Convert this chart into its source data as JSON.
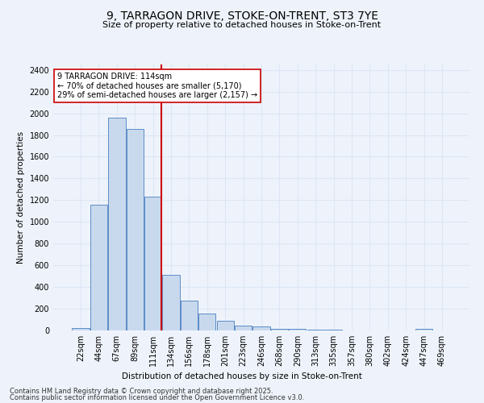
{
  "title1": "9, TARRAGON DRIVE, STOKE-ON-TRENT, ST3 7YE",
  "title2": "Size of property relative to detached houses in Stoke-on-Trent",
  "xlabel": "Distribution of detached houses by size in Stoke-on-Trent",
  "ylabel": "Number of detached properties",
  "bins": [
    "22sqm",
    "44sqm",
    "67sqm",
    "89sqm",
    "111sqm",
    "134sqm",
    "156sqm",
    "178sqm",
    "201sqm",
    "223sqm",
    "246sqm",
    "268sqm",
    "290sqm",
    "313sqm",
    "335sqm",
    "357sqm",
    "380sqm",
    "402sqm",
    "424sqm",
    "447sqm",
    "469sqm"
  ],
  "values": [
    25,
    1155,
    1960,
    1855,
    1230,
    515,
    275,
    155,
    90,
    45,
    40,
    18,
    12,
    8,
    5,
    3,
    2,
    2,
    1,
    15,
    0
  ],
  "bar_color": "#c9d9ed",
  "bar_edge_color": "#5b8dc8",
  "grid_color": "#dce6f5",
  "background_color": "#eef3fb",
  "annotation_text": "9 TARRAGON DRIVE: 114sqm\n← 70% of detached houses are smaller (5,170)\n29% of semi-detached houses are larger (2,157) →",
  "red_line_bin_index": 4,
  "red_line_color": "#cc0000",
  "annotation_box_color": "#ffffff",
  "annotation_box_edge": "#cc0000",
  "ylim": [
    0,
    2450
  ],
  "yticks": [
    0,
    200,
    400,
    600,
    800,
    1000,
    1200,
    1400,
    1600,
    1800,
    2000,
    2200,
    2400
  ],
  "footnote1": "Contains HM Land Registry data © Crown copyright and database right 2025.",
  "footnote2": "Contains public sector information licensed under the Open Government Licence v3.0."
}
